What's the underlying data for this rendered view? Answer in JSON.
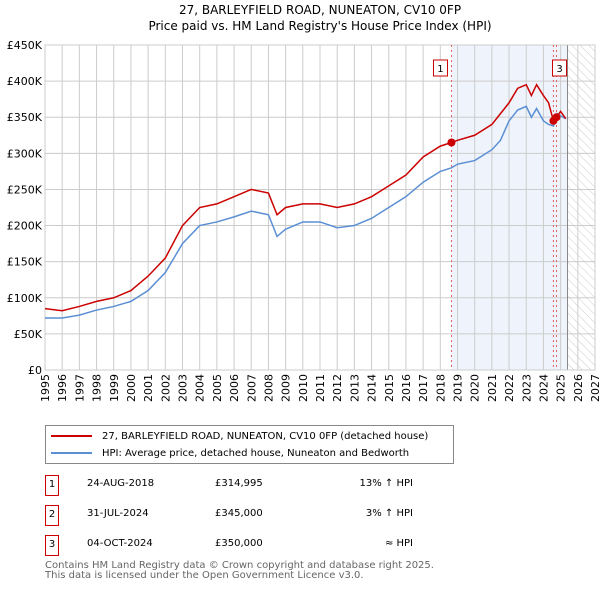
{
  "chart_data": {
    "type": "line",
    "title": "27, BARLEYFIELD ROAD, NUNEATON, CV10 0FP",
    "subtitle": "Price paid vs. HM Land Registry's House Price Index (HPI)",
    "xlim": [
      1995,
      2027
    ],
    "ylim": [
      0,
      450000
    ],
    "x_ticks": [
      "1995",
      "1996",
      "1997",
      "1998",
      "1999",
      "2000",
      "2001",
      "2002",
      "2003",
      "2004",
      "2005",
      "2006",
      "2007",
      "2008",
      "2009",
      "2010",
      "2011",
      "2012",
      "2013",
      "2014",
      "2015",
      "2016",
      "2017",
      "2018",
      "2019",
      "2020",
      "2021",
      "2022",
      "2023",
      "2024",
      "2025",
      "2026",
      "2027"
    ],
    "y_ticks": [
      "£0",
      "£50K",
      "£100K",
      "£150K",
      "£200K",
      "£250K",
      "£300K",
      "£350K",
      "£400K",
      "£450K"
    ],
    "grid": true,
    "shaded_from": 2018.65,
    "hatched_from": 2025.4,
    "series": [
      {
        "name": "27, BARLEYFIELD ROAD, NUNEATON, CV10 0FP (detached house)",
        "color": "#cc0000",
        "x": [
          1995,
          1996,
          1997,
          1998,
          1999,
          2000,
          2001,
          2002,
          2003,
          2004,
          2005,
          2006,
          2007,
          2008,
          2008.5,
          2009,
          2010,
          2011,
          2012,
          2013,
          2014,
          2015,
          2016,
          2017,
          2018,
          2018.65,
          2019,
          2020,
          2021,
          2021.5,
          2022,
          2022.5,
          2023,
          2023.3,
          2023.6,
          2024,
          2024.3,
          2024.58,
          2024.76,
          2025,
          2025.3
        ],
        "y": [
          85000,
          82000,
          88000,
          95000,
          100000,
          110000,
          130000,
          155000,
          200000,
          225000,
          230000,
          240000,
          250000,
          245000,
          215000,
          225000,
          230000,
          230000,
          225000,
          230000,
          240000,
          255000,
          270000,
          295000,
          310000,
          314995,
          318000,
          325000,
          340000,
          355000,
          370000,
          390000,
          395000,
          380000,
          395000,
          380000,
          370000,
          345000,
          350000,
          358000,
          348000
        ]
      },
      {
        "name": "HPI: Average price, detached house, Nuneaton and Bedworth",
        "color": "#5b8fd4",
        "x": [
          1995,
          1996,
          1997,
          1998,
          1999,
          2000,
          2001,
          2002,
          2003,
          2004,
          2005,
          2006,
          2007,
          2008,
          2008.5,
          2009,
          2010,
          2011,
          2012,
          2013,
          2014,
          2015,
          2016,
          2017,
          2018,
          2018.65,
          2019,
          2020,
          2021,
          2021.5,
          2022,
          2022.5,
          2023,
          2023.3,
          2023.6,
          2024,
          2024.3,
          2024.58,
          2024.8,
          2025,
          2025.3
        ],
        "y": [
          72000,
          72000,
          76000,
          83000,
          88000,
          95000,
          110000,
          135000,
          175000,
          200000,
          205000,
          212000,
          220000,
          215000,
          185000,
          195000,
          205000,
          205000,
          197000,
          200000,
          210000,
          225000,
          240000,
          260000,
          275000,
          280000,
          285000,
          290000,
          305000,
          318000,
          345000,
          360000,
          365000,
          350000,
          362000,
          345000,
          340000,
          338000,
          355000,
          352000,
          348000
        ]
      }
    ],
    "sales": [
      {
        "n": "1",
        "x": 2018.65,
        "y": 314995,
        "date": "24-AUG-2018",
        "price": "£314,995",
        "rel": "13% ↑ HPI"
      },
      {
        "n": "2",
        "x": 2024.58,
        "y": 345000,
        "date": "31-JUL-2024",
        "price": "£345,000",
        "rel": "3% ↑ HPI"
      },
      {
        "n": "3",
        "x": 2024.76,
        "y": 350000,
        "date": "04-OCT-2024",
        "price": "£350,000",
        "rel": "≈ HPI"
      }
    ]
  },
  "footer": [
    "Contains HM Land Registry data © Crown copyright and database right 2025.",
    "This data is licensed under the Open Government Licence v3.0."
  ]
}
